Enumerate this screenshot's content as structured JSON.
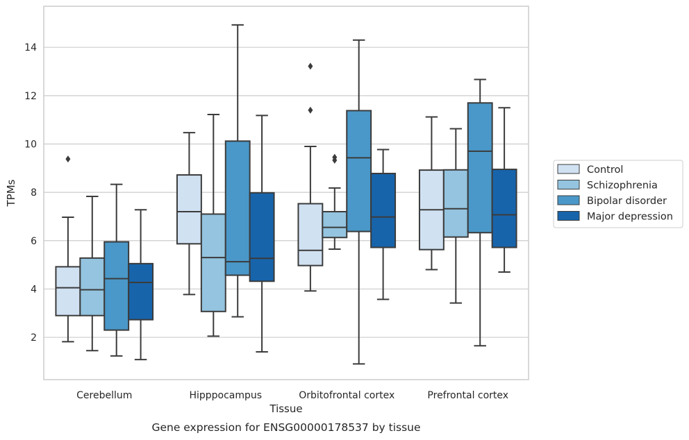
{
  "chart_data": {
    "type": "box",
    "title": "",
    "caption": "Gene expression for ENSG00000178537 by tissue",
    "xlabel": "Tissue",
    "ylabel": "TPMs",
    "ylim": [
      0.25,
      15.7
    ],
    "yticks": [
      2,
      4,
      6,
      8,
      10,
      12,
      14
    ],
    "grid": "horizontal",
    "legend_position": "right",
    "categories": [
      "Cerebellum",
      "Hipppocampus",
      "Orbitofrontal cortex",
      "Prefrontal cortex"
    ],
    "series": [
      {
        "name": "Control",
        "color": "#d0e1f2",
        "boxes": [
          {
            "whisker_low": 1.82,
            "q1": 2.9,
            "median": 4.05,
            "q3": 4.92,
            "whisker_high": 6.97,
            "outliers": [
              9.38
            ]
          },
          {
            "whisker_low": 3.77,
            "q1": 5.87,
            "median": 7.2,
            "q3": 8.72,
            "whisker_high": 10.47,
            "outliers": []
          },
          {
            "whisker_low": 3.92,
            "q1": 4.97,
            "median": 5.6,
            "q3": 7.53,
            "whisker_high": 9.9,
            "outliers": [
              11.4,
              13.22
            ]
          },
          {
            "whisker_low": 4.8,
            "q1": 5.63,
            "median": 7.28,
            "q3": 8.92,
            "whisker_high": 11.12,
            "outliers": []
          }
        ]
      },
      {
        "name": "Schizophrenia",
        "color": "#94c4df",
        "boxes": [
          {
            "whisker_low": 1.45,
            "q1": 2.9,
            "median": 3.97,
            "q3": 5.28,
            "whisker_high": 7.83,
            "outliers": []
          },
          {
            "whisker_low": 2.05,
            "q1": 3.07,
            "median": 5.3,
            "q3": 7.1,
            "whisker_high": 11.22,
            "outliers": []
          },
          {
            "whisker_low": 5.65,
            "q1": 6.13,
            "median": 6.55,
            "q3": 7.2,
            "whisker_high": 8.18,
            "outliers": [
              9.33,
              9.45
            ]
          },
          {
            "whisker_low": 3.42,
            "q1": 6.15,
            "median": 7.32,
            "q3": 8.93,
            "whisker_high": 10.63,
            "outliers": []
          }
        ]
      },
      {
        "name": "Bipolar disorder",
        "color": "#4a98c9",
        "boxes": [
          {
            "whisker_low": 1.23,
            "q1": 2.3,
            "median": 4.43,
            "q3": 5.95,
            "whisker_high": 8.33,
            "outliers": []
          },
          {
            "whisker_low": 2.85,
            "q1": 4.57,
            "median": 5.13,
            "q3": 10.12,
            "whisker_high": 14.93,
            "outliers": []
          },
          {
            "whisker_low": 0.9,
            "q1": 6.38,
            "median": 9.43,
            "q3": 11.38,
            "whisker_high": 14.3,
            "outliers": []
          },
          {
            "whisker_low": 1.65,
            "q1": 6.33,
            "median": 9.7,
            "q3": 11.7,
            "whisker_high": 12.67,
            "outliers": []
          }
        ]
      },
      {
        "name": "Major depression",
        "color": "#1764ab",
        "boxes": [
          {
            "whisker_low": 1.08,
            "q1": 2.73,
            "median": 4.27,
            "q3": 5.05,
            "whisker_high": 7.28,
            "outliers": []
          },
          {
            "whisker_low": 1.4,
            "q1": 4.32,
            "median": 5.27,
            "q3": 7.98,
            "whisker_high": 11.18,
            "outliers": []
          },
          {
            "whisker_low": 3.57,
            "q1": 5.72,
            "median": 6.98,
            "q3": 8.78,
            "whisker_high": 9.77,
            "outliers": []
          },
          {
            "whisker_low": 4.7,
            "q1": 5.72,
            "median": 7.07,
            "q3": 8.95,
            "whisker_high": 11.5,
            "outliers": []
          }
        ]
      }
    ]
  }
}
